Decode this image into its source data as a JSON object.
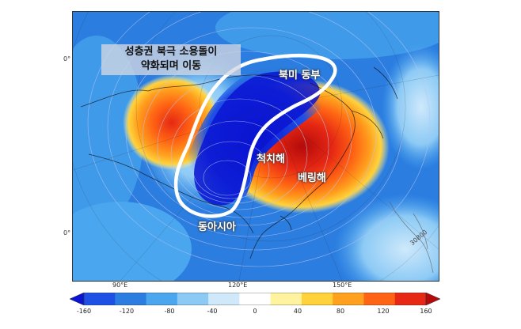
{
  "annotation": {
    "line1": "성층권 북극 소용돌이",
    "line2": "약화되며 이동"
  },
  "regions": {
    "north_america_east": "북미 동부",
    "chukchi_sea": "척치해",
    "bering_sea": "베링해",
    "east_asia": "동아시아"
  },
  "edge_labels": {
    "left_top": "0°",
    "left_bottom": "0°",
    "contour_label": "30800"
  },
  "longitude_labels": [
    "90°E",
    "120°E",
    "150°E"
  ],
  "colorbar": {
    "ticks": [
      "-160",
      "-120",
      "-80",
      "-40",
      "0",
      "40",
      "80",
      "120",
      "160"
    ],
    "colors": [
      "#0a14d2",
      "#1e50e6",
      "#2b7de0",
      "#4aa6ee",
      "#8ccaf5",
      "#cfe9fb",
      "#ffffff",
      "#fff3a0",
      "#ffd23c",
      "#ffa01e",
      "#ff6414",
      "#e62814",
      "#b40a0a"
    ]
  }
}
